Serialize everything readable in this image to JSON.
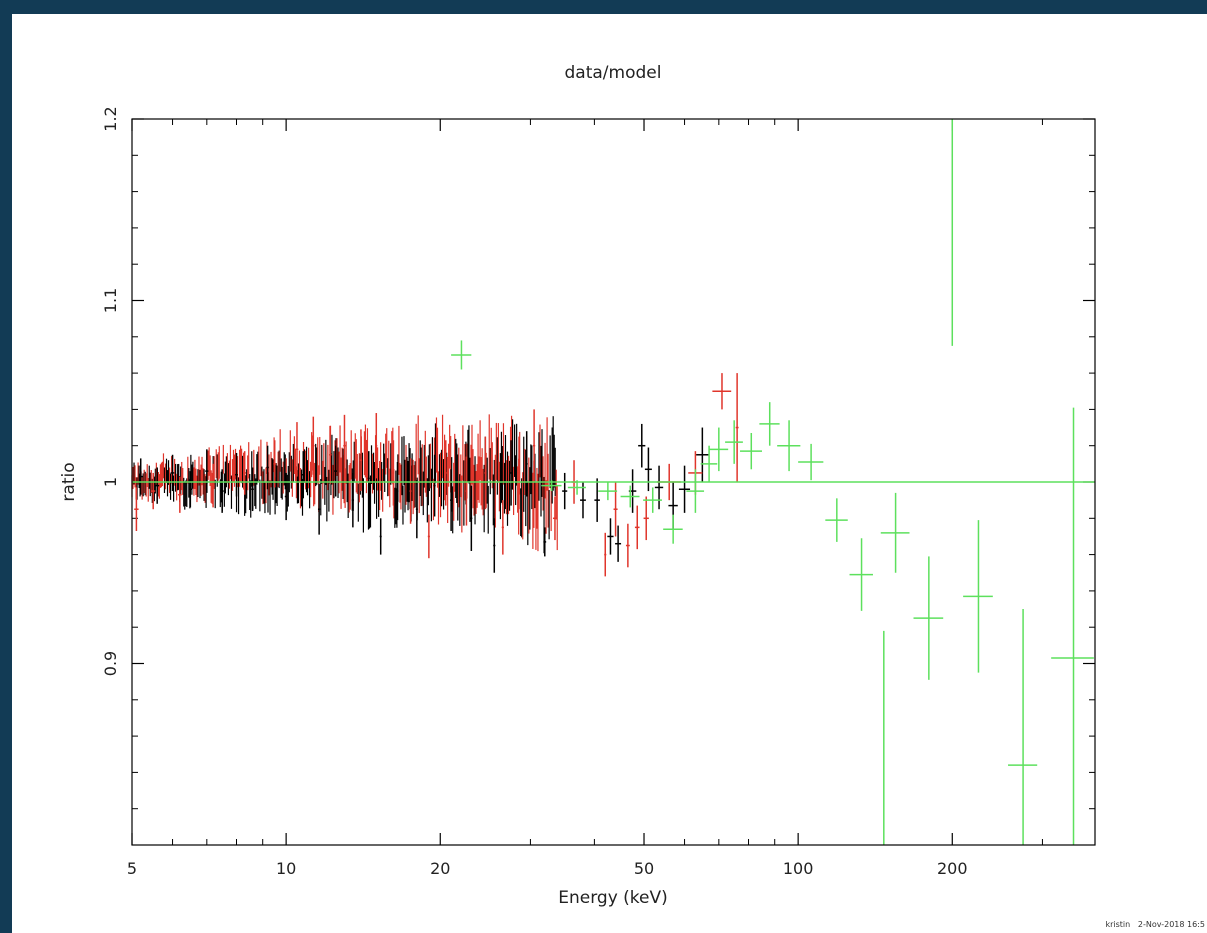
{
  "window": {
    "background": "#123b55"
  },
  "footer": {
    "user": "kristin",
    "date": "2-Nov-2018 16:5"
  },
  "colors": {
    "black_series": "#000000",
    "red_series": "#e0352b",
    "green_series": "#5de05d"
  },
  "chart_data": {
    "type": "scatter",
    "title": "data/model",
    "xlabel": "Energy (keV)",
    "ylabel": "ratio",
    "xscale": "log",
    "xlim": [
      5,
      380
    ],
    "ylim": [
      0.8,
      1.2
    ],
    "xticks": [
      5,
      10,
      20,
      50,
      100,
      200
    ],
    "xtick_labels": [
      "5",
      "10",
      "20",
      "50",
      "100",
      "200"
    ],
    "yticks": [
      0.9,
      1.0,
      1.1,
      1.2
    ],
    "ytick_labels": [
      "0.9",
      "1",
      "1.1",
      "1.2"
    ],
    "grid": false,
    "model_line": {
      "y": 1.0,
      "xstart": 5,
      "xend": 380,
      "color": "#5de05d"
    },
    "dense_region": {
      "xstart": 5,
      "xend": 34,
      "description_color_black": "#000000",
      "description_color_red": "#e0352b"
    },
    "series": [
      {
        "color": "#000000",
        "points": [
          {
            "x": 5.2,
            "y": 1.003,
            "xerr": 0.05,
            "yerr": 0.01
          },
          {
            "x": 5.6,
            "y": 0.998,
            "xerr": 0.05,
            "yerr": 0.01
          },
          {
            "x": 6.0,
            "y": 1.005,
            "xerr": 0.05,
            "yerr": 0.01
          },
          {
            "x": 6.5,
            "y": 0.996,
            "xerr": 0.05,
            "yerr": 0.01
          },
          {
            "x": 7.0,
            "y": 1.006,
            "xerr": 0.05,
            "yerr": 0.012
          },
          {
            "x": 7.5,
            "y": 0.995,
            "xerr": 0.05,
            "yerr": 0.012
          },
          {
            "x": 8.0,
            "y": 1.004,
            "xerr": 0.05,
            "yerr": 0.012
          },
          {
            "x": 8.6,
            "y": 0.996,
            "xerr": 0.05,
            "yerr": 0.012
          },
          {
            "x": 9.2,
            "y": 1.008,
            "xerr": 0.05,
            "yerr": 0.012
          },
          {
            "x": 10.0,
            "y": 0.992,
            "xerr": 0.06,
            "yerr": 0.013
          },
          {
            "x": 10.8,
            "y": 1.004,
            "xerr": 0.06,
            "yerr": 0.013
          },
          {
            "x": 11.6,
            "y": 0.985,
            "xerr": 0.06,
            "yerr": 0.014
          },
          {
            "x": 12.5,
            "y": 1.006,
            "xerr": 0.07,
            "yerr": 0.014
          },
          {
            "x": 13.5,
            "y": 0.99,
            "xerr": 0.07,
            "yerr": 0.015
          },
          {
            "x": 14.5,
            "y": 1.002,
            "xerr": 0.07,
            "yerr": 0.015
          },
          {
            "x": 15.3,
            "y": 0.97,
            "xerr": 0.07,
            "yerr": 0.01
          },
          {
            "x": 16.5,
            "y": 0.995,
            "xerr": 0.08,
            "yerr": 0.016
          },
          {
            "x": 18.0,
            "y": 0.985,
            "xerr": 0.08,
            "yerr": 0.016
          },
          {
            "x": 19.5,
            "y": 0.998,
            "xerr": 0.09,
            "yerr": 0.017
          },
          {
            "x": 21.0,
            "y": 0.99,
            "xerr": 0.1,
            "yerr": 0.017
          },
          {
            "x": 23.0,
            "y": 0.98,
            "xerr": 0.1,
            "yerr": 0.018
          },
          {
            "x": 25.5,
            "y": 0.965,
            "xerr": 0.12,
            "yerr": 0.015
          },
          {
            "x": 27.5,
            "y": 1.005,
            "xerr": 0.13,
            "yerr": 0.018
          },
          {
            "x": 29.5,
            "y": 1.01,
            "xerr": 0.14,
            "yerr": 0.018
          },
          {
            "x": 32.0,
            "y": 0.967,
            "xerr": 0.2,
            "yerr": 0.008
          },
          {
            "x": 35.0,
            "y": 0.995,
            "xerr": 0.4,
            "yerr": 0.01
          },
          {
            "x": 38.0,
            "y": 0.99,
            "xerr": 0.5,
            "yerr": 0.01
          },
          {
            "x": 40.5,
            "y": 0.99,
            "xerr": 0.5,
            "yerr": 0.012
          },
          {
            "x": 43.0,
            "y": 0.97,
            "xerr": 0.6,
            "yerr": 0.01
          },
          {
            "x": 44.5,
            "y": 0.966,
            "xerr": 0.6,
            "yerr": 0.01
          },
          {
            "x": 47.5,
            "y": 0.995,
            "xerr": 0.8,
            "yerr": 0.012
          },
          {
            "x": 49.5,
            "y": 1.02,
            "xerr": 0.8,
            "yerr": 0.012
          },
          {
            "x": 51.0,
            "y": 1.007,
            "xerr": 0.8,
            "yerr": 0.012
          },
          {
            "x": 53.5,
            "y": 0.997,
            "xerr": 1.0,
            "yerr": 0.012
          },
          {
            "x": 57.0,
            "y": 0.987,
            "xerr": 1.2,
            "yerr": 0.013
          },
          {
            "x": 60.0,
            "y": 0.996,
            "xerr": 1.5,
            "yerr": 0.013
          },
          {
            "x": 65.0,
            "y": 1.015,
            "xerr": 1.8,
            "yerr": 0.015
          }
        ]
      },
      {
        "color": "#e0352b",
        "points": [
          {
            "x": 5.1,
            "y": 0.985,
            "xerr": 0.05,
            "yerr": 0.012
          },
          {
            "x": 5.5,
            "y": 0.995,
            "xerr": 0.05,
            "yerr": 0.01
          },
          {
            "x": 6.2,
            "y": 0.993,
            "xerr": 0.05,
            "yerr": 0.01
          },
          {
            "x": 7.2,
            "y": 0.998,
            "xerr": 0.05,
            "yerr": 0.012
          },
          {
            "x": 8.3,
            "y": 1.005,
            "xerr": 0.05,
            "yerr": 0.012
          },
          {
            "x": 9.5,
            "y": 1.01,
            "xerr": 0.06,
            "yerr": 0.013
          },
          {
            "x": 10.5,
            "y": 1.018,
            "xerr": 0.06,
            "yerr": 0.015
          },
          {
            "x": 11.3,
            "y": 1.02,
            "xerr": 0.06,
            "yerr": 0.016
          },
          {
            "x": 12.2,
            "y": 1.015,
            "xerr": 0.07,
            "yerr": 0.016
          },
          {
            "x": 13.0,
            "y": 1.02,
            "xerr": 0.07,
            "yerr": 0.017
          },
          {
            "x": 14.0,
            "y": 1.012,
            "xerr": 0.07,
            "yerr": 0.017
          },
          {
            "x": 15.0,
            "y": 1.02,
            "xerr": 0.07,
            "yerr": 0.018
          },
          {
            "x": 16.2,
            "y": 1.005,
            "xerr": 0.08,
            "yerr": 0.018
          },
          {
            "x": 17.5,
            "y": 0.995,
            "xerr": 0.08,
            "yerr": 0.018
          },
          {
            "x": 19.0,
            "y": 0.97,
            "xerr": 0.09,
            "yerr": 0.012
          },
          {
            "x": 20.5,
            "y": 1.005,
            "xerr": 0.1,
            "yerr": 0.018
          },
          {
            "x": 22.5,
            "y": 0.995,
            "xerr": 0.1,
            "yerr": 0.019
          },
          {
            "x": 24.5,
            "y": 1.005,
            "xerr": 0.12,
            "yerr": 0.02
          },
          {
            "x": 26.5,
            "y": 0.975,
            "xerr": 0.13,
            "yerr": 0.015
          },
          {
            "x": 28.5,
            "y": 1.005,
            "xerr": 0.14,
            "yerr": 0.02
          },
          {
            "x": 30.5,
            "y": 1.02,
            "xerr": 0.15,
            "yerr": 0.02
          },
          {
            "x": 33.5,
            "y": 0.98,
            "xerr": 0.3,
            "yerr": 0.012
          },
          {
            "x": 36.5,
            "y": 1.0,
            "xerr": 0.4,
            "yerr": 0.012
          },
          {
            "x": 42.0,
            "y": 0.96,
            "xerr": 0.2,
            "yerr": 0.012
          },
          {
            "x": 44.0,
            "y": 0.985,
            "xerr": 0.4,
            "yerr": 0.015
          },
          {
            "x": 46.5,
            "y": 0.965,
            "xerr": 0.4,
            "yerr": 0.012
          },
          {
            "x": 48.5,
            "y": 0.975,
            "xerr": 0.5,
            "yerr": 0.012
          },
          {
            "x": 50.5,
            "y": 0.98,
            "xerr": 0.6,
            "yerr": 0.012
          },
          {
            "x": 56.0,
            "y": 1.0,
            "xerr": 3.0,
            "yerr": 0.01
          },
          {
            "x": 63.0,
            "y": 1.005,
            "xerr": 2.0,
            "yerr": 0.012
          },
          {
            "x": 71.0,
            "y": 1.05,
            "xerr": 3.0,
            "yerr": 0.01
          },
          {
            "x": 76.0,
            "y": 1.03,
            "xerr": 0.5,
            "yerr": 0.03
          }
        ]
      },
      {
        "color": "#5de05d",
        "points": [
          {
            "x": 22.0,
            "y": 1.07,
            "xerr": 1.0,
            "yerr": 0.008
          },
          {
            "x": 33.0,
            "y": 0.998,
            "xerr": 1.5,
            "yerr": 0.003
          },
          {
            "x": 37.0,
            "y": 0.997,
            "xerr": 1.5,
            "yerr": 0.004
          },
          {
            "x": 42.5,
            "y": 0.995,
            "xerr": 1.8,
            "yerr": 0.005
          },
          {
            "x": 47.0,
            "y": 0.992,
            "xerr": 2.0,
            "yerr": 0.006
          },
          {
            "x": 52.0,
            "y": 0.99,
            "xerr": 2.2,
            "yerr": 0.007
          },
          {
            "x": 57.0,
            "y": 0.974,
            "xerr": 2.5,
            "yerr": 0.008
          },
          {
            "x": 63.0,
            "y": 0.995,
            "xerr": 2.5,
            "yerr": 0.012
          },
          {
            "x": 67.0,
            "y": 1.01,
            "xerr": 2.5,
            "yerr": 0.01
          },
          {
            "x": 70.0,
            "y": 1.018,
            "xerr": 3.0,
            "yerr": 0.012
          },
          {
            "x": 75.0,
            "y": 1.022,
            "xerr": 3.0,
            "yerr": 0.012
          },
          {
            "x": 81.0,
            "y": 1.017,
            "xerr": 4.0,
            "yerr": 0.01
          },
          {
            "x": 88.0,
            "y": 1.032,
            "xerr": 4.0,
            "yerr": 0.012
          },
          {
            "x": 96.0,
            "y": 1.02,
            "xerr": 5.0,
            "yerr": 0.014
          },
          {
            "x": 106.0,
            "y": 1.011,
            "xerr": 6.0,
            "yerr": 0.01
          },
          {
            "x": 119.0,
            "y": 0.979,
            "xerr": 6.0,
            "yerr": 0.012
          },
          {
            "x": 133.0,
            "y": 0.949,
            "xerr": 7.0,
            "yerr": 0.02
          },
          {
            "x": 147.0,
            "y": 0.78,
            "xerr": 0.5,
            "yerr": 0.138
          },
          {
            "x": 155.0,
            "y": 0.972,
            "xerr": 10.0,
            "yerr": 0.022
          },
          {
            "x": 180.0,
            "y": 0.925,
            "xerr": 12.0,
            "yerr": 0.034
          },
          {
            "x": 200.0,
            "y": 1.18,
            "xerr": 0.5,
            "yerr": 0.105
          },
          {
            "x": 225.0,
            "y": 0.937,
            "xerr": 15.0,
            "yerr": 0.042
          },
          {
            "x": 275.0,
            "y": 0.844,
            "xerr": 18.0,
            "yerr": 0.086
          },
          {
            "x": 345.0,
            "y": 0.903,
            "xerr": 33.0,
            "yerr": 0.138
          }
        ]
      }
    ]
  }
}
